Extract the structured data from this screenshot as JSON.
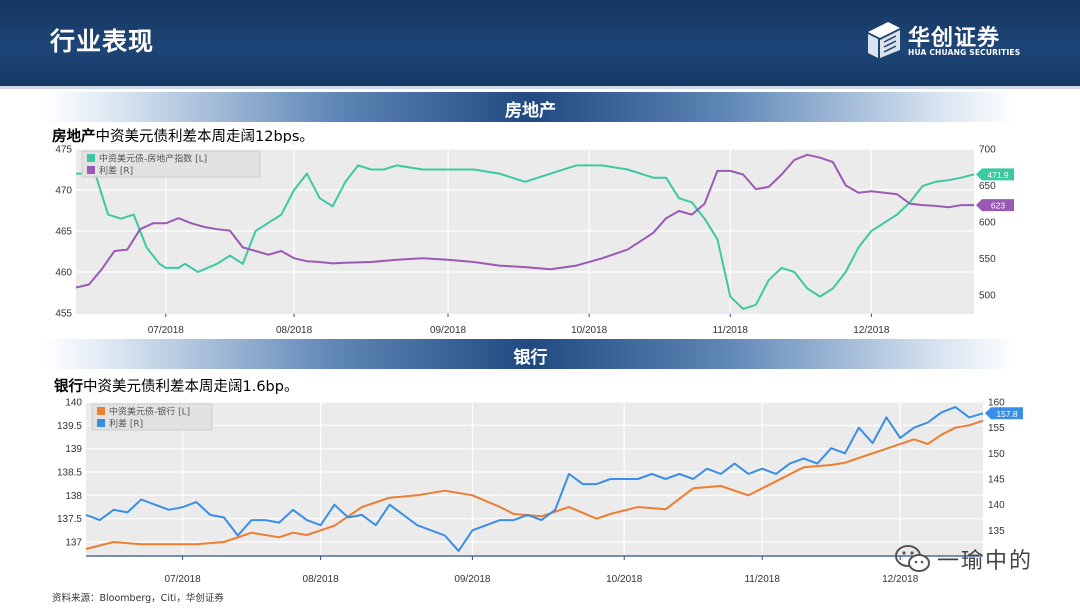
{
  "header": {
    "title": "行业表现",
    "logo_cn": "华创证券",
    "logo_en": "HUA CHUANG SECURITIES"
  },
  "sections": [
    {
      "band": "房地产",
      "lead_bold": "房地产",
      "lead_rest": "中资美元债利差本周走阔12bps。"
    },
    {
      "band": "银行",
      "lead_bold": "银行",
      "lead_rest": "中资美元债利差本周走阔1.6bp。"
    }
  ],
  "footer": {
    "source": "资料来源：Bloomberg，Citi，华创证券"
  },
  "watermark": {
    "text": "一瑜中的",
    "icon": "wechat-icon"
  },
  "colors": {
    "green": "#3dc9a0",
    "purple": "#9b59b6",
    "orange": "#ed7d31",
    "blue": "#3a8ee6"
  },
  "chart_data": [
    {
      "type": "line",
      "title": "",
      "x_tick_labels": [
        "07/2018",
        "08/2018",
        "09/2018",
        "10/2018",
        "11/2018",
        "12/2018"
      ],
      "x_tick_positions": [
        1.2,
        2.2,
        3.4,
        4.5,
        5.6,
        6.7
      ],
      "x_range": [
        0.5,
        7.5
      ],
      "y_left": {
        "ticks": [
          "475",
          "470",
          "465",
          "460",
          "455"
        ],
        "range": [
          455,
          475
        ]
      },
      "y_right": {
        "ticks": [
          "700",
          "650",
          "600",
          "550",
          "500"
        ],
        "range": [
          475,
          700
        ]
      },
      "grid": true,
      "legend": "top-left",
      "series": [
        {
          "name": "中资美元债-房地产指数 [L]",
          "axis": "left",
          "color": "#3dc9a0",
          "last_label": "471.9",
          "x": [
            0.5,
            0.65,
            0.75,
            0.85,
            0.95,
            1.05,
            1.15,
            1.2,
            1.3,
            1.35,
            1.45,
            1.6,
            1.7,
            1.8,
            1.9,
            2.0,
            2.1,
            2.2,
            2.3,
            2.4,
            2.5,
            2.6,
            2.7,
            2.8,
            2.9,
            3.0,
            3.2,
            3.4,
            3.6,
            3.8,
            4.0,
            4.2,
            4.4,
            4.6,
            4.8,
            5.0,
            5.1,
            5.2,
            5.3,
            5.4,
            5.5,
            5.6,
            5.7,
            5.8,
            5.9,
            6.0,
            6.1,
            6.2,
            6.3,
            6.4,
            6.5,
            6.6,
            6.7,
            6.8,
            6.9,
            7.0,
            7.1,
            7.2,
            7.3,
            7.4,
            7.5
          ],
          "y": [
            472,
            472,
            467,
            466.5,
            467,
            463,
            461,
            460.5,
            460.5,
            461,
            460,
            461,
            462,
            461,
            465,
            466,
            467,
            470,
            472,
            469,
            468,
            471,
            473,
            472.5,
            472.5,
            473,
            472.5,
            472.5,
            472.5,
            472,
            471,
            472,
            473,
            473,
            472.5,
            471.5,
            471.5,
            469,
            468.5,
            466.5,
            464,
            457,
            455.5,
            456,
            459,
            460.5,
            460,
            458,
            457,
            458,
            460,
            463,
            465,
            466,
            467,
            468.5,
            470.5,
            471,
            471.2,
            471.5,
            471.9
          ]
        },
        {
          "name": "利差 [R]",
          "axis": "right",
          "color": "#9b59b6",
          "last_label": "623",
          "x": [
            0.5,
            0.6,
            0.7,
            0.8,
            0.9,
            1.0,
            1.1,
            1.2,
            1.3,
            1.4,
            1.5,
            1.6,
            1.7,
            1.8,
            1.9,
            2.0,
            2.1,
            2.2,
            2.3,
            2.4,
            2.5,
            2.6,
            2.8,
            3.0,
            3.2,
            3.4,
            3.6,
            3.8,
            4.0,
            4.2,
            4.4,
            4.6,
            4.8,
            5.0,
            5.1,
            5.2,
            5.3,
            5.4,
            5.5,
            5.6,
            5.7,
            5.8,
            5.9,
            6.0,
            6.1,
            6.2,
            6.3,
            6.4,
            6.5,
            6.6,
            6.7,
            6.8,
            6.9,
            7.0,
            7.1,
            7.2,
            7.3,
            7.4,
            7.5
          ],
          "y": [
            510,
            514,
            535,
            560,
            562,
            590,
            598,
            598,
            605,
            598,
            593,
            590,
            588,
            565,
            560,
            555,
            560,
            550,
            546,
            545,
            543,
            544,
            545,
            548,
            550,
            548,
            545,
            540,
            538,
            535,
            540,
            550,
            562,
            585,
            605,
            615,
            610,
            625,
            670,
            670,
            665,
            645,
            648,
            665,
            685,
            692,
            688,
            682,
            650,
            640,
            642,
            640,
            638,
            625,
            623,
            622,
            620,
            623,
            623
          ]
        }
      ]
    },
    {
      "type": "line",
      "title": "",
      "x_tick_labels": [
        "07/2018",
        "08/2018",
        "09/2018",
        "10/2018",
        "11/2018",
        "12/2018"
      ],
      "x_tick_positions": [
        1.2,
        2.2,
        3.3,
        4.4,
        5.4,
        6.4
      ],
      "x_range": [
        0.5,
        7.0
      ],
      "y_left": {
        "ticks": [
          "140",
          "139.5",
          "139",
          "138.5",
          "138",
          "137.5",
          "137"
        ],
        "range": [
          136.7,
          140
        ]
      },
      "y_right": {
        "ticks": [
          "160",
          "155",
          "150",
          "145",
          "140",
          "135"
        ],
        "range": [
          130,
          160
        ]
      },
      "grid": true,
      "legend": "top-left",
      "series": [
        {
          "name": "中资美元债-银行 [L]",
          "axis": "left",
          "color": "#ed7d31",
          "x": [
            0.5,
            0.7,
            0.9,
            1.1,
            1.3,
            1.5,
            1.7,
            1.9,
            2.0,
            2.1,
            2.3,
            2.5,
            2.7,
            2.9,
            3.1,
            3.3,
            3.5,
            3.6,
            3.8,
            4.0,
            4.2,
            4.3,
            4.5,
            4.7,
            4.9,
            5.1,
            5.3,
            5.5,
            5.7,
            5.9,
            6.0,
            6.1,
            6.3,
            6.5,
            6.6,
            6.7,
            6.8,
            6.9,
            7.0
          ],
          "y": [
            136.85,
            137.0,
            136.95,
            136.95,
            136.95,
            137.0,
            137.2,
            137.1,
            137.2,
            137.15,
            137.35,
            137.75,
            137.95,
            138.0,
            138.1,
            138.0,
            137.75,
            137.6,
            137.55,
            137.75,
            137.5,
            137.6,
            137.75,
            137.7,
            138.15,
            138.2,
            138.0,
            138.3,
            138.6,
            138.65,
            138.7,
            138.8,
            139.0,
            139.2,
            139.1,
            139.3,
            139.45,
            139.5,
            139.6
          ]
        },
        {
          "name": "利差 [R]",
          "axis": "right",
          "color": "#3a8ee6",
          "last_label": "157.8",
          "x": [
            0.5,
            0.6,
            0.7,
            0.8,
            0.9,
            1.0,
            1.1,
            1.2,
            1.3,
            1.4,
            1.5,
            1.6,
            1.7,
            1.8,
            1.9,
            2.0,
            2.1,
            2.2,
            2.3,
            2.4,
            2.5,
            2.6,
            2.7,
            2.8,
            2.9,
            3.0,
            3.1,
            3.2,
            3.3,
            3.4,
            3.5,
            3.6,
            3.7,
            3.8,
            3.9,
            4.0,
            4.1,
            4.2,
            4.3,
            4.4,
            4.5,
            4.6,
            4.7,
            4.8,
            4.9,
            5.0,
            5.1,
            5.2,
            5.3,
            5.4,
            5.5,
            5.6,
            5.7,
            5.8,
            5.9,
            6.0,
            6.1,
            6.2,
            6.3,
            6.4,
            6.5,
            6.6,
            6.7,
            6.8,
            6.9,
            7.0
          ],
          "y": [
            138,
            137,
            139,
            138.5,
            141,
            140,
            139,
            139.5,
            140.5,
            138,
            137.5,
            134,
            137,
            137,
            136.5,
            139,
            137,
            136,
            140,
            137.5,
            138,
            136,
            140,
            138,
            136,
            135,
            134,
            131,
            135,
            136,
            137,
            137,
            138,
            137,
            139,
            146,
            144,
            144,
            145,
            145,
            145,
            146,
            145,
            146,
            145,
            147,
            146,
            148,
            146,
            147,
            146,
            148,
            149,
            148,
            151,
            150,
            155,
            152,
            157,
            153,
            155,
            156,
            158,
            159,
            157,
            157.8
          ]
        }
      ]
    }
  ]
}
